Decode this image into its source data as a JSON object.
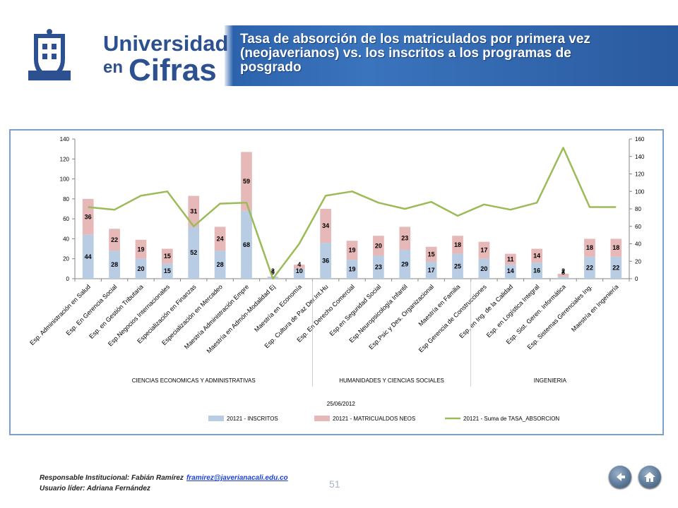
{
  "header": {
    "brand_line1": "Universidad",
    "brand_line2": "en",
    "brand_line3": "Cifras",
    "title": "Tasa de absorción de los matriculados por primera vez (neojaverianos) vs. los inscritos a los programas de posgrado"
  },
  "chart_data": {
    "type": "bar",
    "stacked": true,
    "categories": [
      "Esp. Administración en Salud",
      "Esp. En Gerencia Social",
      "Esp. en Gestión Tributaria",
      "Esp.Negocios Internacionales",
      "Especialización en Finanzas",
      "Especialización en Mercadeo",
      "Maestría Administración Empre",
      "Maestría en Admón-Modalidad Ej",
      "Maestría en Economía",
      "Esp. Cultura de Paz Der.Int.Hu",
      "Esp. En Derecho Comercial",
      "Esp.en Seguridad Social",
      "Esp.Neuropsicología Infantil",
      "Esp.Psic y Des. Organizacional",
      "Maestría en Familia",
      "Esp Gerencia de Construcciones",
      "Esp. en Ing. de la Calidad",
      "Esp. en Logística Integral",
      "Esp. Sist. Geren. Informática",
      "Esp. Sistemas Gerenciales Ing.",
      "Maestría en Ingeniería"
    ],
    "groups": [
      {
        "label": "CIENCIAS ECONOMICAS Y ADMINISTRATIVAS",
        "start": 0,
        "end": 8
      },
      {
        "label": "HUMANIDADES Y CIENCIAS SOCIALES",
        "start": 9,
        "end": 14
      },
      {
        "label": "INGENIERIA",
        "start": 15,
        "end": 20
      }
    ],
    "series": [
      {
        "name": "20121 - INSCRITOS",
        "values": [
          44,
          28,
          20,
          15,
          52,
          28,
          68,
          2,
          10,
          36,
          19,
          23,
          29,
          17,
          25,
          20,
          14,
          16,
          2,
          22,
          22
        ],
        "color": "#b8cce4"
      },
      {
        "name": "20121 - MATRICUALDOS NEOS",
        "values": [
          36,
          22,
          19,
          15,
          31,
          24,
          59,
          0,
          4,
          34,
          19,
          20,
          23,
          15,
          18,
          17,
          11,
          14,
          3,
          18,
          18
        ],
        "color": "#e6b9b8"
      },
      {
        "name": "20121 - Suma de TASA_ABSORCION",
        "axis": "right",
        "values": [
          82,
          79,
          95,
          100,
          60,
          86,
          87,
          0,
          40,
          95,
          100,
          87,
          80,
          88,
          72,
          85,
          79,
          87,
          150,
          82,
          82
        ],
        "color": "#9bbb59"
      }
    ],
    "left_axis": {
      "min": 0,
      "max": 140,
      "step": 20
    },
    "right_axis": {
      "min": 0,
      "max": 160,
      "step": 20
    },
    "date_label": "25/06/2012",
    "legend_position": "bottom"
  },
  "footer": {
    "responsible_label": "Responsable Institucional: Fabián Ramírez",
    "email": "framirez@javerianacali.edu.co",
    "leader_label": "Usuario líder: Adriana Fernández",
    "page_number": "51"
  },
  "nav": {
    "back_icon": "back-arrow-icon",
    "home_icon": "home-icon"
  }
}
